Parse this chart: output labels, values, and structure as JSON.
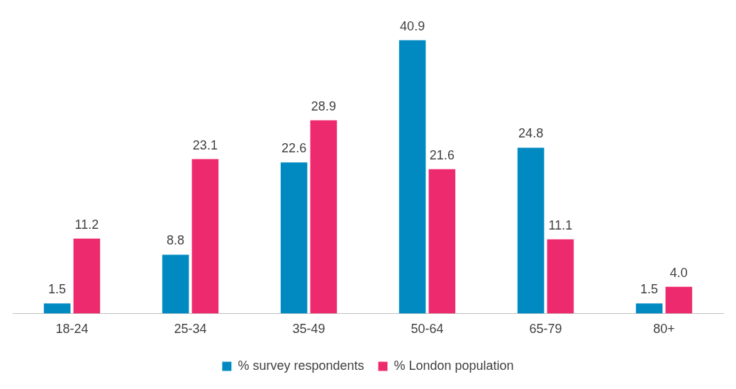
{
  "chart_data": {
    "type": "bar",
    "categories": [
      "18-24",
      "25-34",
      "35-49",
      "50-64",
      "65-79",
      "80+"
    ],
    "series": [
      {
        "name": "% survey respondents",
        "color": "#008ac1",
        "values": [
          1.5,
          8.8,
          22.6,
          40.9,
          24.8,
          1.5
        ],
        "value_labels": [
          "1.5",
          "8.8",
          "22.6",
          "40.9",
          "24.8",
          "1.5"
        ]
      },
      {
        "name": "% London population",
        "color": "#ee2a6e",
        "values": [
          11.2,
          23.1,
          28.9,
          21.6,
          11.1,
          4.0
        ],
        "value_labels": [
          "11.2",
          "23.1",
          "28.9",
          "21.6",
          "11.1",
          "4.0"
        ]
      }
    ],
    "legend": "bottom",
    "grid": false
  }
}
